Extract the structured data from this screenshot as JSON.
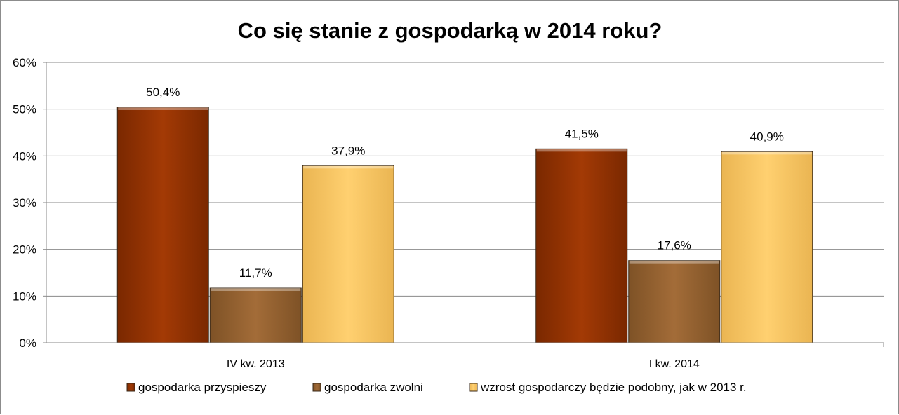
{
  "chart_data": {
    "type": "bar",
    "title": "Co się stanie z gospodarką w 2014 roku?",
    "categories": [
      "IV kw. 2013",
      "I kw. 2014"
    ],
    "series": [
      {
        "name": "gospodarka przyspieszy",
        "values": [
          50.4,
          41.5
        ],
        "labels": [
          "50,4%",
          "41,5%"
        ],
        "color": "#993300"
      },
      {
        "name": "gospodarka zwolni",
        "values": [
          11.7,
          17.6
        ],
        "labels": [
          "11,7%",
          "17,6%"
        ],
        "color": "#996633"
      },
      {
        "name": "wzrost gospodarczy będzie podobny, jak w 2013 r.",
        "values": [
          37.9,
          40.9
        ],
        "labels": [
          "37,9%",
          "40,9%"
        ],
        "color": "#ffcc66"
      }
    ],
    "ylim": [
      0,
      60
    ],
    "yticks": [
      0,
      10,
      20,
      30,
      40,
      50,
      60
    ],
    "ytick_labels": [
      "0%",
      "10%",
      "20%",
      "30%",
      "40%",
      "50%",
      "60%"
    ],
    "grid": true,
    "legend_position": "bottom"
  }
}
